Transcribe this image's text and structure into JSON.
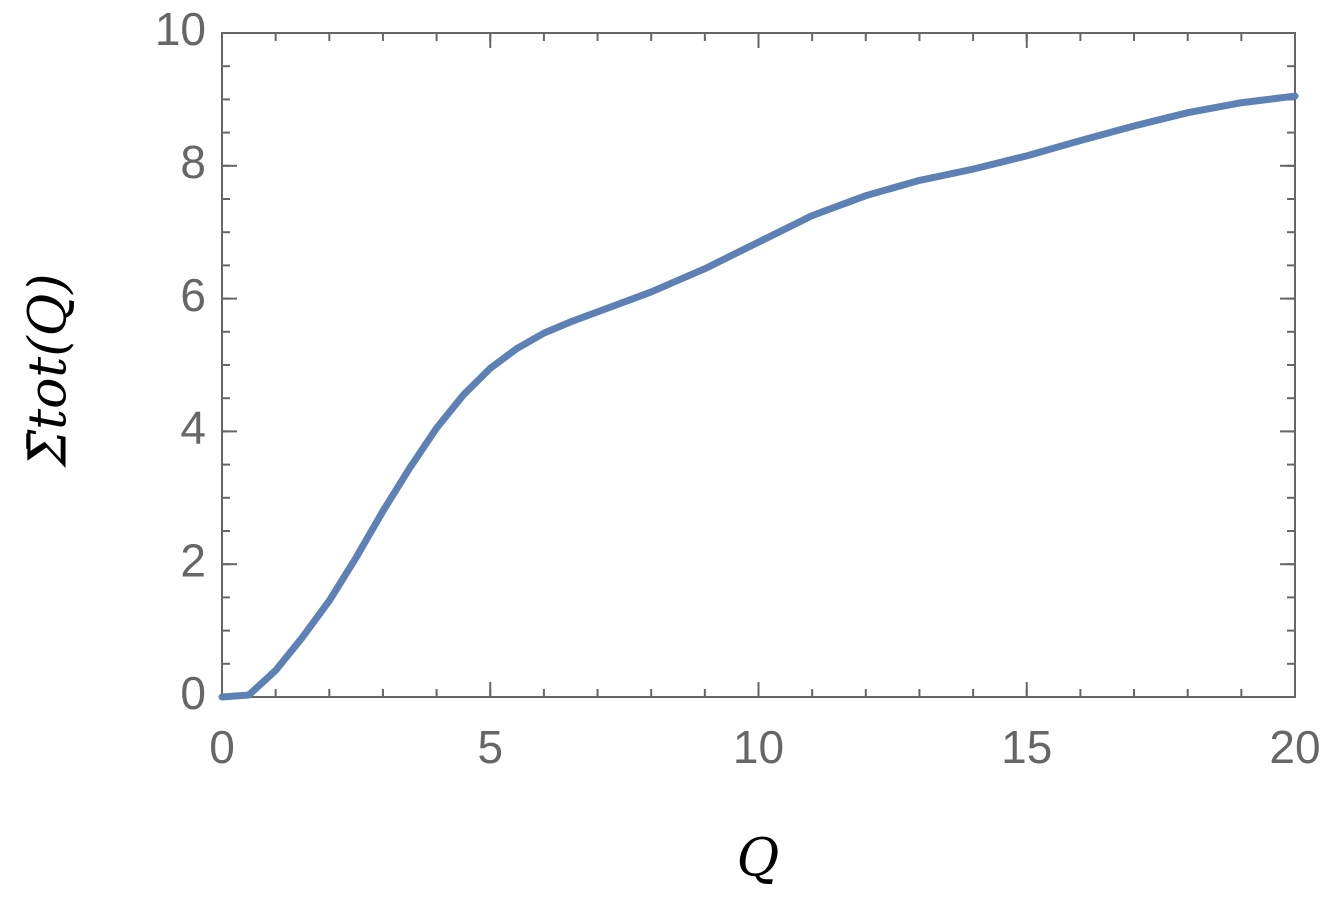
{
  "chart_data": {
    "type": "line",
    "xlabel": "Q",
    "ylabel": "Σ̄tot(Q)",
    "x": [
      0,
      0.5,
      1,
      1.5,
      2,
      2.5,
      3,
      3.5,
      4,
      4.5,
      5,
      5.5,
      6,
      6.5,
      7,
      8,
      9,
      10,
      11,
      12,
      13,
      14,
      15,
      16,
      17,
      18,
      19,
      20
    ],
    "series": [
      {
        "color": "#5e81b5",
        "values": [
          0,
          0.03,
          0.4,
          0.9,
          1.45,
          2.1,
          2.8,
          3.45,
          4.05,
          4.55,
          4.95,
          5.25,
          5.48,
          5.65,
          5.8,
          6.1,
          6.45,
          6.85,
          7.25,
          7.55,
          7.78,
          7.95,
          8.15,
          8.38,
          8.6,
          8.8,
          8.95,
          9.05
        ]
      }
    ],
    "xlim": [
      0,
      20
    ],
    "ylim": [
      0,
      10
    ],
    "xticks": [
      0,
      5,
      10,
      15,
      20
    ],
    "yticks": [
      0,
      2,
      4,
      6,
      8,
      10
    ]
  }
}
